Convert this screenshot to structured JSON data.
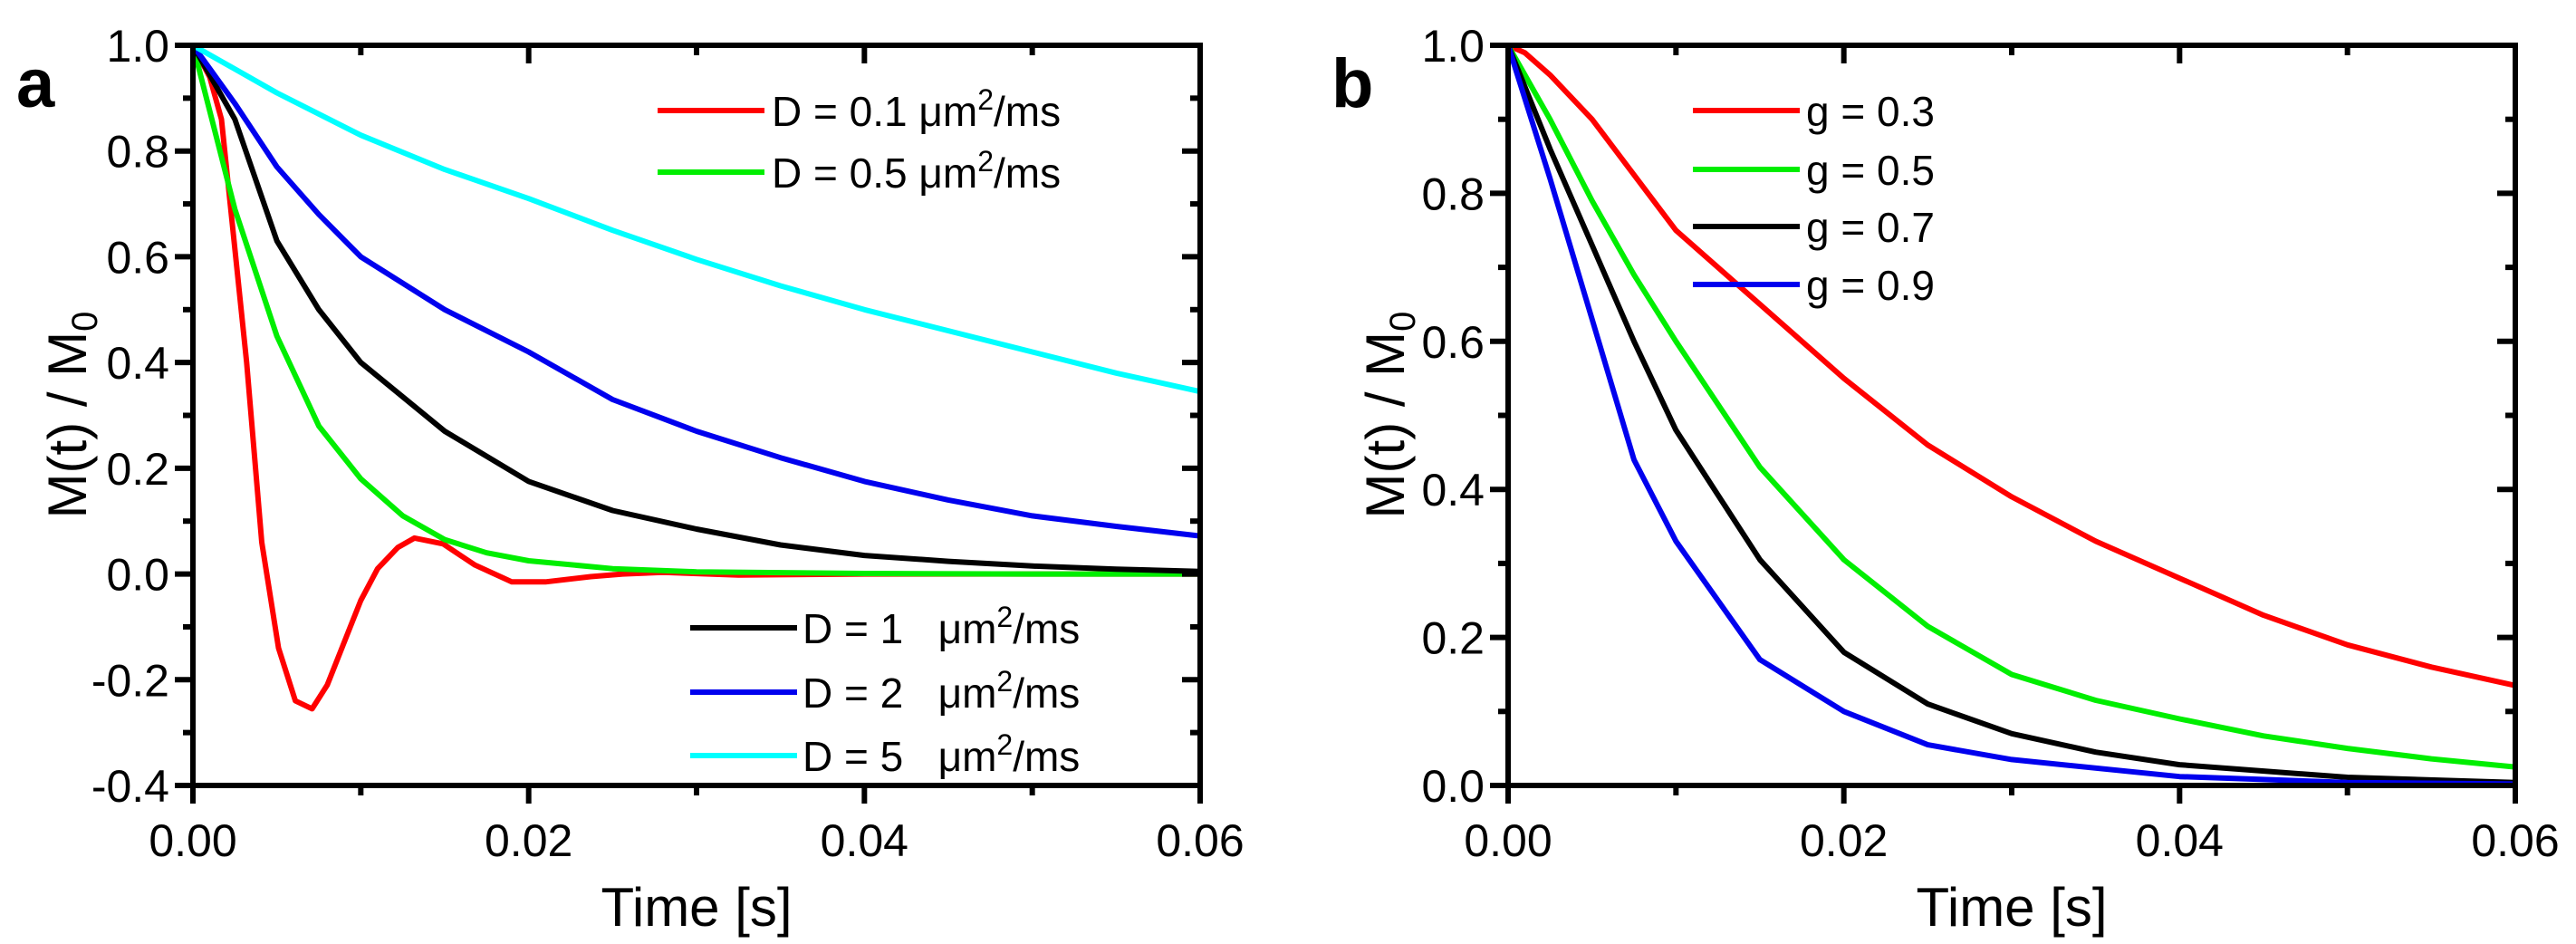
{
  "chart_data": [
    {
      "type": "line",
      "panel_label": "a",
      "xlabel": "Time [s]",
      "ylabel": "M(t) / M",
      "ylabel_sub": "0",
      "xlim": [
        0,
        0.06
      ],
      "ylim": [
        -0.4,
        1.0
      ],
      "xticks": [
        "0.00",
        "0.02",
        "0.04",
        "0.06"
      ],
      "xtick_values": [
        0,
        0.02,
        0.04,
        0.06
      ],
      "yticks": [
        "-0.4",
        "-0.2",
        "0.0",
        "0.2",
        "0.4",
        "0.6",
        "0.8",
        "1.0"
      ],
      "ytick_values": [
        -0.4,
        -0.2,
        0,
        0.2,
        0.4,
        0.6,
        0.8,
        1.0
      ],
      "grid": false,
      "legend_groups": [
        {
          "placement": "top-right",
          "series": [
            0,
            1
          ]
        },
        {
          "placement": "bottom-right",
          "series": [
            2,
            3,
            4
          ]
        }
      ],
      "series": [
        {
          "name": "D = 0.1 μm²/ms",
          "label_main": "D = 0.1 μm",
          "label_sup": "2",
          "label_tail": "/ms",
          "color": "#ff0000",
          "x": [
            0,
            0.001,
            0.0017,
            0.0032,
            0.0041,
            0.0051,
            0.0061,
            0.0071,
            0.008,
            0.01,
            0.011,
            0.0122,
            0.0132,
            0.0149,
            0.0168,
            0.019,
            0.021,
            0.0237,
            0.0256,
            0.028,
            0.0325,
            0.04,
            0.05,
            0.06
          ],
          "y": [
            1,
            0.94,
            0.86,
            0.4,
            0.06,
            -0.14,
            -0.24,
            -0.255,
            -0.21,
            -0.05,
            0.01,
            0.05,
            0.068,
            0.057,
            0.017,
            -0.015,
            -0.015,
            -0.005,
            0,
            0.003,
            -0.002,
            0,
            0,
            0
          ]
        },
        {
          "name": "D = 0.5 μm²/ms",
          "label_main": "D = 0.5 μm",
          "label_sup": "2",
          "label_tail": "/ms",
          "color": "#00ee00",
          "x": [
            0,
            0.0025,
            0.005,
            0.0075,
            0.01,
            0.0125,
            0.015,
            0.0175,
            0.02,
            0.025,
            0.03,
            0.04,
            0.05,
            0.06
          ],
          "y": [
            1,
            0.69,
            0.45,
            0.28,
            0.18,
            0.11,
            0.065,
            0.04,
            0.025,
            0.01,
            0.004,
            0.001,
            0,
            0
          ]
        },
        {
          "name": "D = 1 μm²/ms",
          "label_main": "D = 1   μm",
          "label_sup": "2",
          "label_tail": "/ms",
          "color": "#000000",
          "x": [
            0,
            0.0025,
            0.005,
            0.0075,
            0.01,
            0.015,
            0.02,
            0.025,
            0.03,
            0.035,
            0.04,
            0.045,
            0.05,
            0.055,
            0.06
          ],
          "y": [
            1,
            0.86,
            0.63,
            0.5,
            0.4,
            0.27,
            0.175,
            0.12,
            0.085,
            0.055,
            0.035,
            0.024,
            0.015,
            0.009,
            0.005
          ]
        },
        {
          "name": "D = 2 μm²/ms",
          "label_main": "D = 2   μm",
          "label_sup": "2",
          "label_tail": "/ms",
          "color": "#0000ee",
          "x": [
            0,
            0.0025,
            0.005,
            0.0075,
            0.01,
            0.015,
            0.02,
            0.025,
            0.03,
            0.035,
            0.04,
            0.045,
            0.05,
            0.055,
            0.06
          ],
          "y": [
            1,
            0.89,
            0.77,
            0.68,
            0.6,
            0.5,
            0.42,
            0.33,
            0.27,
            0.22,
            0.175,
            0.14,
            0.11,
            0.09,
            0.072
          ]
        },
        {
          "name": "D = 5 μm²/ms",
          "label_main": "D = 5   μm",
          "label_sup": "2",
          "label_tail": "/ms",
          "color": "#00ffff",
          "x": [
            0,
            0.005,
            0.01,
            0.015,
            0.02,
            0.025,
            0.03,
            0.035,
            0.04,
            0.045,
            0.05,
            0.055,
            0.06
          ],
          "y": [
            1,
            0.91,
            0.83,
            0.765,
            0.71,
            0.65,
            0.595,
            0.545,
            0.5,
            0.46,
            0.42,
            0.38,
            0.345
          ]
        }
      ]
    },
    {
      "type": "line",
      "panel_label": "b",
      "xlabel": "Time [s]",
      "ylabel": "M(t) / M",
      "ylabel_sub": "0",
      "xlim": [
        0,
        0.06
      ],
      "ylim": [
        0,
        1.0
      ],
      "xticks": [
        "0.00",
        "0.02",
        "0.04",
        "0.06"
      ],
      "xtick_values": [
        0,
        0.02,
        0.04,
        0.06
      ],
      "yticks": [
        "0.0",
        "0.2",
        "0.4",
        "0.6",
        "0.8",
        "1.0"
      ],
      "ytick_values": [
        0,
        0.2,
        0.4,
        0.6,
        0.8,
        1.0
      ],
      "grid": false,
      "legend_groups": [
        {
          "placement": "top-right",
          "series": [
            0,
            1,
            2,
            3
          ]
        }
      ],
      "series": [
        {
          "name": "g = 0.3",
          "label_main": "g = 0.3",
          "label_sup": "",
          "label_tail": "",
          "color": "#ff0000",
          "x": [
            0,
            0.001,
            0.0025,
            0.005,
            0.01,
            0.015,
            0.02,
            0.025,
            0.03,
            0.035,
            0.04,
            0.045,
            0.05,
            0.055,
            0.06
          ],
          "y": [
            1,
            0.99,
            0.96,
            0.9,
            0.75,
            0.65,
            0.55,
            0.46,
            0.39,
            0.33,
            0.28,
            0.23,
            0.19,
            0.16,
            0.135
          ]
        },
        {
          "name": "g = 0.5",
          "label_main": "g = 0.5",
          "label_sup": "",
          "label_tail": "",
          "color": "#00ee00",
          "x": [
            0,
            0.0025,
            0.005,
            0.0075,
            0.01,
            0.015,
            0.02,
            0.025,
            0.03,
            0.035,
            0.04,
            0.045,
            0.05,
            0.055,
            0.06
          ],
          "y": [
            1,
            0.9,
            0.79,
            0.69,
            0.6,
            0.43,
            0.305,
            0.215,
            0.15,
            0.115,
            0.09,
            0.067,
            0.05,
            0.036,
            0.025
          ]
        },
        {
          "name": "g = 0.7",
          "label_main": "g = 0.7",
          "label_sup": "",
          "label_tail": "",
          "color": "#000000",
          "x": [
            0,
            0.0025,
            0.005,
            0.0075,
            0.01,
            0.015,
            0.02,
            0.025,
            0.03,
            0.035,
            0.04,
            0.05,
            0.06
          ],
          "y": [
            1,
            0.86,
            0.73,
            0.6,
            0.48,
            0.305,
            0.18,
            0.11,
            0.07,
            0.045,
            0.028,
            0.011,
            0.004
          ]
        },
        {
          "name": "g = 0.9",
          "label_main": "g = 0.9",
          "label_sup": "",
          "label_tail": "",
          "color": "#0000ee",
          "x": [
            0,
            0.0025,
            0.005,
            0.0075,
            0.01,
            0.015,
            0.02,
            0.025,
            0.03,
            0.04,
            0.05,
            0.06
          ],
          "y": [
            1,
            0.82,
            0.63,
            0.44,
            0.33,
            0.17,
            0.1,
            0.055,
            0.035,
            0.012,
            0.004,
            0.002
          ]
        }
      ]
    }
  ]
}
